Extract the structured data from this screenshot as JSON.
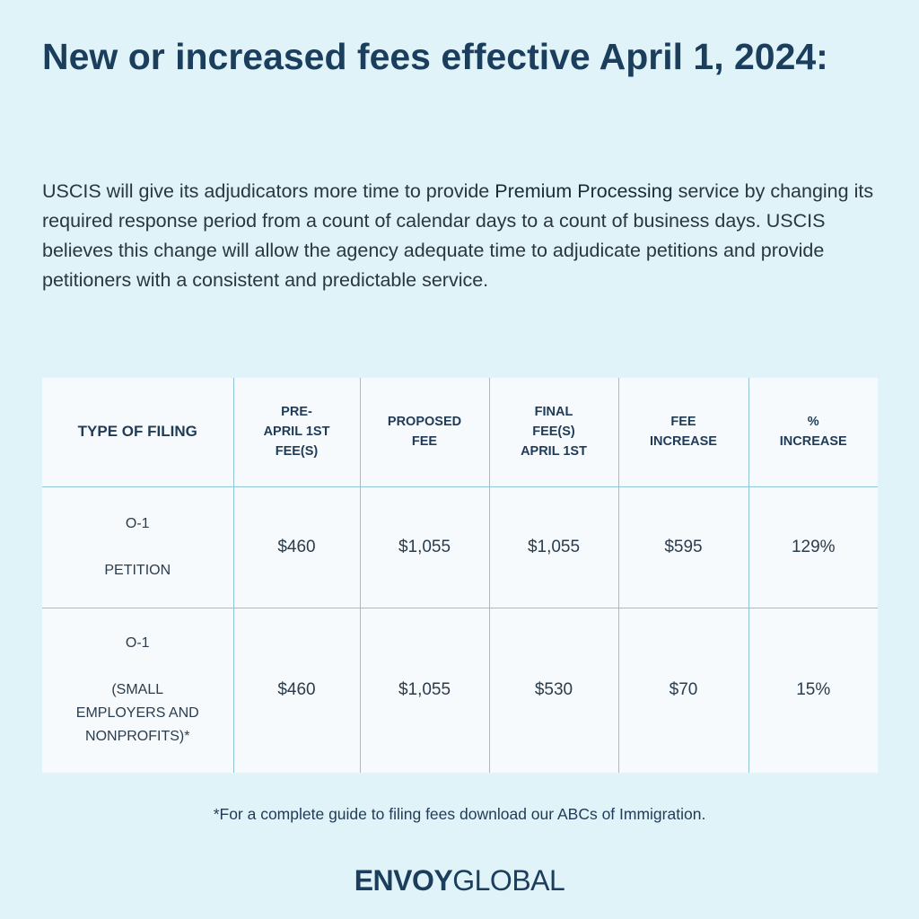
{
  "title": "New or increased fees effective April 1, 2024:",
  "intro": {
    "text_before": "USCIS will give its adjudicators more time to provide ",
    "highlight": "Premium Processing",
    "text_after": " service by changing its required response period from a count of calendar days to a count of business days. USCIS believes this change will allow the agency adequate time to adjudicate petitions and provide petitioners with a consistent and predictable service."
  },
  "table": {
    "headers": [
      "TYPE OF FILING",
      "PRE-\nAPRIL 1ST\nFEE(S)",
      "PROPOSED\nFEE",
      "FINAL\nFEE(S)\nAPRIL 1ST",
      "FEE\nINCREASE",
      "%\nINCREASE"
    ],
    "rows": [
      {
        "filing_name": "O-1",
        "filing_desc": "PETITION",
        "pre_fee": "$460",
        "proposed_fee": "$1,055",
        "final_fee": "$1,055",
        "fee_increase": "$595",
        "pct_increase": "129%"
      },
      {
        "filing_name": "O-1",
        "filing_desc": "(SMALL\nEMPLOYERS AND\nNONPROFITS)*",
        "pre_fee": "$460",
        "proposed_fee": "$1,055",
        "final_fee": "$530",
        "fee_increase": "$70",
        "pct_increase": "15%"
      }
    ]
  },
  "footnote": "*For a complete guide to filing fees download our ABCs of Immigration.",
  "logo": {
    "part1": "ENVOY",
    "part2": "GLOBAL"
  },
  "colors": {
    "background": "#e0f3f9",
    "title": "#1b3e5c",
    "table_bg": "#f6fafc",
    "border": "#8fc3d6"
  }
}
